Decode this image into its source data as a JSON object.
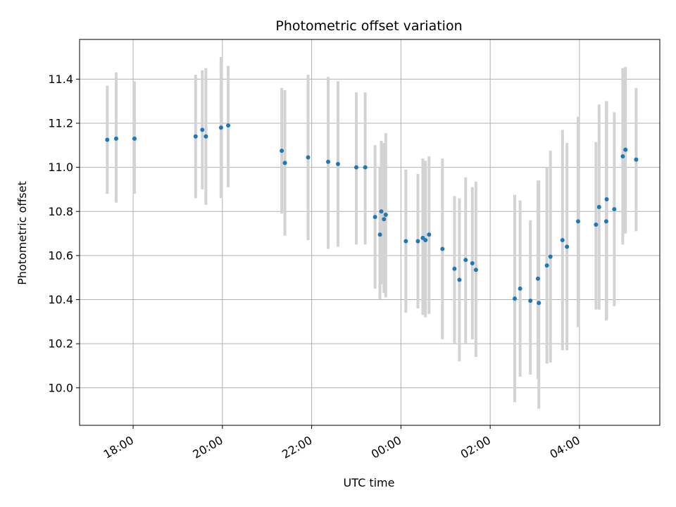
{
  "chart_data": {
    "type": "scatter",
    "title": "Photometric offset variation",
    "xlabel": "UTC time",
    "ylabel": "Photometric offset",
    "x_unit": "hours since 00:00 UTC",
    "xlim": [
      -7.2,
      5.8
    ],
    "ylim": [
      9.83,
      11.58
    ],
    "x_ticks": [
      {
        "value": -6,
        "label": "18:00"
      },
      {
        "value": -4,
        "label": "20:00"
      },
      {
        "value": -2,
        "label": "22:00"
      },
      {
        "value": 0,
        "label": "00:00"
      },
      {
        "value": 2,
        "label": "02:00"
      },
      {
        "value": 4,
        "label": "04:00"
      }
    ],
    "y_ticks": [
      {
        "value": 10.0,
        "label": "10.0"
      },
      {
        "value": 10.2,
        "label": "10.2"
      },
      {
        "value": 10.4,
        "label": "10.4"
      },
      {
        "value": 10.6,
        "label": "10.6"
      },
      {
        "value": 10.8,
        "label": "10.8"
      },
      {
        "value": 11.0,
        "label": "11.0"
      },
      {
        "value": 11.2,
        "label": "11.2"
      },
      {
        "value": 11.4,
        "label": "11.4"
      }
    ],
    "grid": true,
    "marker_color": "#1f77b4",
    "errorbar_color": "#d3d3d3",
    "points": [
      {
        "x": -6.58,
        "y": 11.125,
        "lo": 10.88,
        "hi": 11.37
      },
      {
        "x": -6.38,
        "y": 11.13,
        "lo": 10.84,
        "hi": 11.43
      },
      {
        "x": -5.97,
        "y": 11.13,
        "lo": 10.88,
        "hi": 11.39
      },
      {
        "x": -4.6,
        "y": 11.14,
        "lo": 10.86,
        "hi": 11.42
      },
      {
        "x": -4.45,
        "y": 11.17,
        "lo": 10.9,
        "hi": 11.44
      },
      {
        "x": -4.37,
        "y": 11.14,
        "lo": 10.83,
        "hi": 11.45
      },
      {
        "x": -4.03,
        "y": 11.18,
        "lo": 10.86,
        "hi": 11.5
      },
      {
        "x": -3.87,
        "y": 11.19,
        "lo": 10.91,
        "hi": 11.46
      },
      {
        "x": -2.67,
        "y": 11.075,
        "lo": 10.79,
        "hi": 11.36
      },
      {
        "x": -2.6,
        "y": 11.02,
        "lo": 10.69,
        "hi": 11.35
      },
      {
        "x": -2.08,
        "y": 11.045,
        "lo": 10.67,
        "hi": 11.42
      },
      {
        "x": -1.63,
        "y": 11.025,
        "lo": 10.63,
        "hi": 11.41
      },
      {
        "x": -1.41,
        "y": 11.015,
        "lo": 10.64,
        "hi": 11.39
      },
      {
        "x": -1.0,
        "y": 11.0,
        "lo": 10.65,
        "hi": 11.34
      },
      {
        "x": -0.8,
        "y": 11.0,
        "lo": 10.65,
        "hi": 11.34
      },
      {
        "x": -0.58,
        "y": 10.775,
        "lo": 10.45,
        "hi": 11.1
      },
      {
        "x": -0.47,
        "y": 10.695,
        "lo": 10.4,
        "hi": 11.0
      },
      {
        "x": -0.44,
        "y": 10.8,
        "lo": 10.47,
        "hi": 11.12
      },
      {
        "x": -0.38,
        "y": 10.765,
        "lo": 10.43,
        "hi": 11.11
      },
      {
        "x": -0.34,
        "y": 10.785,
        "lo": 10.41,
        "hi": 11.155
      },
      {
        "x": 0.11,
        "y": 10.665,
        "lo": 10.34,
        "hi": 10.99
      },
      {
        "x": 0.38,
        "y": 10.665,
        "lo": 10.36,
        "hi": 10.97
      },
      {
        "x": 0.49,
        "y": 10.68,
        "lo": 10.33,
        "hi": 11.04
      },
      {
        "x": 0.55,
        "y": 10.67,
        "lo": 10.32,
        "hi": 11.03
      },
      {
        "x": 0.63,
        "y": 10.695,
        "lo": 10.335,
        "hi": 11.05
      },
      {
        "x": 0.93,
        "y": 10.63,
        "lo": 10.22,
        "hi": 11.04
      },
      {
        "x": 1.2,
        "y": 10.54,
        "lo": 10.2,
        "hi": 10.87
      },
      {
        "x": 1.31,
        "y": 10.49,
        "lo": 10.12,
        "hi": 10.86
      },
      {
        "x": 1.45,
        "y": 10.58,
        "lo": 10.2,
        "hi": 10.955
      },
      {
        "x": 1.6,
        "y": 10.565,
        "lo": 10.22,
        "hi": 10.91
      },
      {
        "x": 1.68,
        "y": 10.535,
        "lo": 10.14,
        "hi": 10.935
      },
      {
        "x": 2.55,
        "y": 10.405,
        "lo": 9.935,
        "hi": 10.875
      },
      {
        "x": 2.67,
        "y": 10.45,
        "lo": 10.05,
        "hi": 10.85
      },
      {
        "x": 2.9,
        "y": 10.395,
        "lo": 10.06,
        "hi": 10.76
      },
      {
        "x": 3.09,
        "y": 10.385,
        "lo": 9.905,
        "hi": 10.94
      },
      {
        "x": 3.07,
        "y": 10.495,
        "lo": 10.04,
        "hi": 10.94
      },
      {
        "x": 3.27,
        "y": 10.555,
        "lo": 10.11,
        "hi": 11.0
      },
      {
        "x": 3.35,
        "y": 10.595,
        "lo": 10.115,
        "hi": 11.075
      },
      {
        "x": 3.62,
        "y": 10.67,
        "lo": 10.17,
        "hi": 11.17
      },
      {
        "x": 3.72,
        "y": 10.64,
        "lo": 10.17,
        "hi": 11.11
      },
      {
        "x": 3.97,
        "y": 10.755,
        "lo": 10.275,
        "hi": 11.23
      },
      {
        "x": 4.37,
        "y": 10.74,
        "lo": 10.355,
        "hi": 11.115
      },
      {
        "x": 4.44,
        "y": 10.82,
        "lo": 10.355,
        "hi": 11.285
      },
      {
        "x": 4.6,
        "y": 10.755,
        "lo": 10.305,
        "hi": 11.3
      },
      {
        "x": 4.61,
        "y": 10.855,
        "lo": 10.31,
        "hi": 11.3
      },
      {
        "x": 4.78,
        "y": 10.81,
        "lo": 10.37,
        "hi": 11.25
      },
      {
        "x": 4.97,
        "y": 11.05,
        "lo": 10.65,
        "hi": 11.45
      },
      {
        "x": 5.03,
        "y": 11.08,
        "lo": 10.7,
        "hi": 11.455
      },
      {
        "x": 5.27,
        "y": 11.035,
        "lo": 10.71,
        "hi": 11.36
      }
    ]
  }
}
